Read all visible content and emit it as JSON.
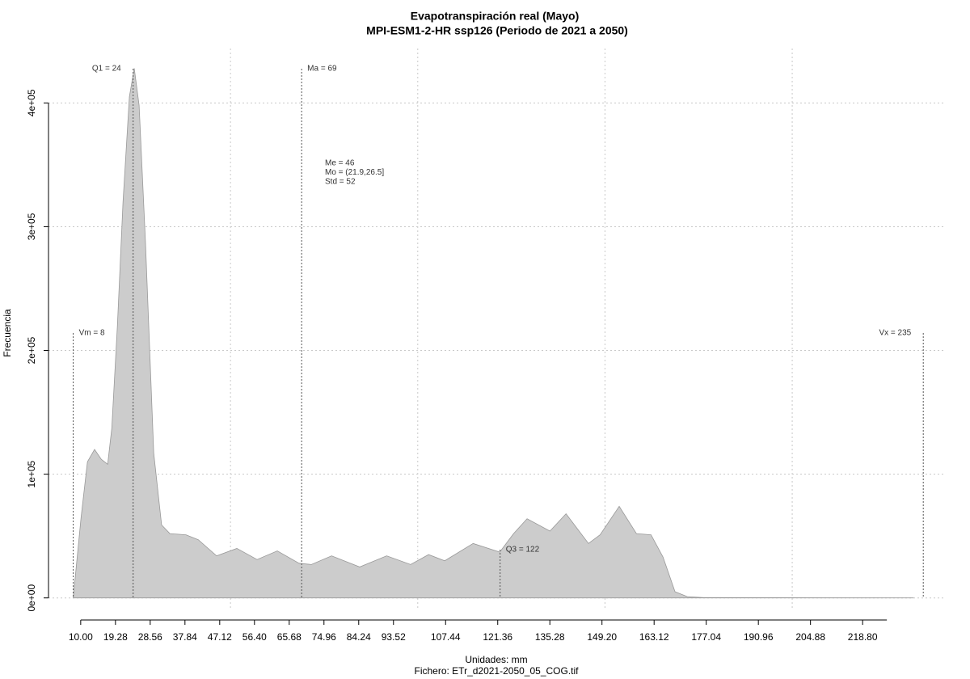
{
  "chart_data": {
    "type": "area",
    "title": "Evapotranspiración real (Mayo)",
    "subtitle": "MPI-ESM1-2-HR ssp126 (Periodo de 2021 a 2050)",
    "xlabel": "Unidades: mm",
    "caption": "Fichero: ETr_d2021-2050_05_COG.tif",
    "ylabel": "Frecuencia",
    "color": "#cccccc",
    "x": [
      8.0,
      10.1,
      11.8,
      13.7,
      15.5,
      17.2,
      18.3,
      19.8,
      21.3,
      23.0,
      24.3,
      25.6,
      27.3,
      29.5,
      31.6,
      33.8,
      38.1,
      41.4,
      46.3,
      51.7,
      57.1,
      62.5,
      68.3,
      71.6,
      77.0,
      84.5,
      91.7,
      98.1,
      102.9,
      107.2,
      114.8,
      121.9,
      125.6,
      129.2,
      135.3,
      139.6,
      145.6,
      148.7,
      153.8,
      158.4,
      162.3,
      165.5,
      168.7,
      172.0,
      176.3,
      232.4
    ],
    "values": [
      0,
      65000,
      110000,
      120000,
      112000,
      108000,
      137000,
      220000,
      320000,
      405000,
      428000,
      398000,
      287000,
      117000,
      59000,
      52000,
      51000,
      47000,
      34000,
      40000,
      31000,
      38000,
      28000,
      27000,
      34000,
      25000,
      34000,
      27000,
      35000,
      30000,
      44000,
      37000,
      52000,
      64000,
      54000,
      68000,
      44000,
      51000,
      74000,
      52000,
      51000,
      33000,
      5000,
      1000,
      300,
      0
    ],
    "xlim": [
      1.4,
      241
    ],
    "ylim": [
      -10000,
      444000
    ],
    "xticks": [
      {
        "value": 10,
        "label": "10.00"
      },
      {
        "value": 19.28,
        "label": "19.28"
      },
      {
        "value": 28.56,
        "label": "28.56"
      },
      {
        "value": 37.84,
        "label": "37.84"
      },
      {
        "value": 47.12,
        "label": "47.12"
      },
      {
        "value": 56.4,
        "label": "56.40"
      },
      {
        "value": 65.68,
        "label": "65.68"
      },
      {
        "value": 74.96,
        "label": "74.96"
      },
      {
        "value": 84.24,
        "label": "84.24"
      },
      {
        "value": 93.52,
        "label": "93.52"
      },
      {
        "value": 107.44,
        "label": "107.44"
      },
      {
        "value": 121.36,
        "label": "121.36"
      },
      {
        "value": 135.28,
        "label": "135.28"
      },
      {
        "value": 149.2,
        "label": "149.20"
      },
      {
        "value": 163.12,
        "label": "163.12"
      },
      {
        "value": 177.04,
        "label": "177.04"
      },
      {
        "value": 190.96,
        "label": "190.96"
      },
      {
        "value": 204.88,
        "label": "204.88"
      },
      {
        "value": 218.8,
        "label": "218.80"
      }
    ],
    "yticks": [
      {
        "value": 0,
        "label": "0e+00"
      },
      {
        "value": 100000,
        "label": "1e+05"
      },
      {
        "value": 200000,
        "label": "2e+05"
      },
      {
        "value": 300000,
        "label": "3e+05"
      },
      {
        "value": 400000,
        "label": "4e+05"
      }
    ],
    "xgrid": [
      50,
      100,
      150,
      200
    ],
    "grid": true,
    "annotations": [
      {
        "label": "Vm = 8",
        "x": 8
      },
      {
        "label": "Q1 = 24",
        "x": 24
      },
      {
        "label": "Ma = 69",
        "x": 69
      },
      {
        "label": "Q3 = 122",
        "x": 122
      },
      {
        "label": "Vx = 235",
        "x": 235
      }
    ],
    "stats": [
      "Me = 46",
      "Mo = (21.9,26.5]",
      "Std = 52"
    ]
  }
}
